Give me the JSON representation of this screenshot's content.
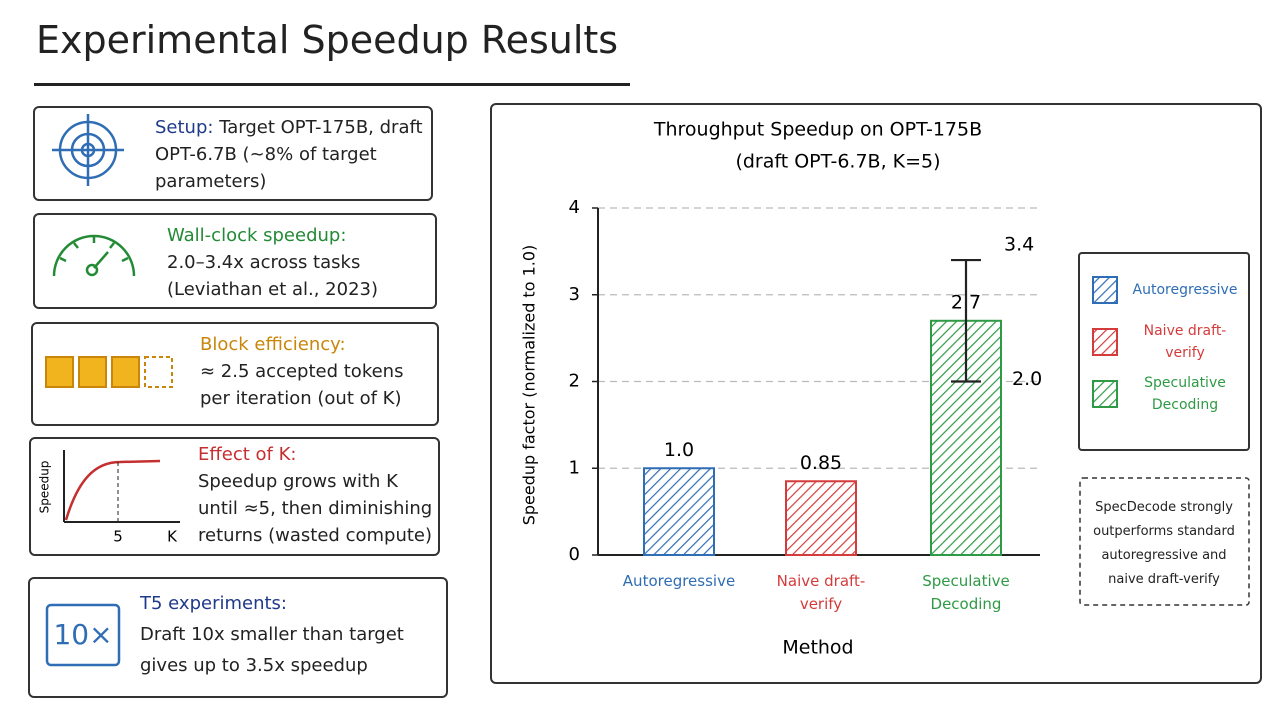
{
  "title": "Experimental Speedup Results",
  "cards": [
    {
      "heading": "Setup:",
      "body": "Target OPT-175B, draft OPT-6.7B (~8% of target parameters)"
    },
    {
      "heading": "Wall-clock speedup:",
      "body": "2.0–3.4x across tasks (Leviathan et al., 2023)"
    },
    {
      "heading": "Block efficiency:",
      "body": "≈ 2.5 accepted tokens per iteration (out of K)"
    },
    {
      "heading": "Effect of K:",
      "body": "Speedup grows with K until ≈5, then diminishing returns (wasted compute)",
      "icon_labels": {
        "y": "Speedup",
        "x_tick": "5",
        "x": "K"
      }
    },
    {
      "heading": "T5 experiments:",
      "body": "Draft 10x smaller than target gives up to 3.5x speedup",
      "icon_text": "10×"
    }
  ],
  "chart_data": {
    "type": "bar",
    "title": "Throughput Speedup on OPT-175B",
    "subtitle": "(draft OPT-6.7B, K=5)",
    "xlabel": "Method",
    "ylabel": "Speedup factor (normalized to 1.0)",
    "categories": [
      "Autoregressive",
      "Naive draft-verify",
      "Speculative Decoding"
    ],
    "values": [
      1,
      0.85,
      2.7
    ],
    "value_labels": [
      "1.0",
      "0.85",
      "2.7"
    ],
    "error_low": [
      null,
      null,
      2
    ],
    "error_low_labels": [
      null,
      null,
      "2.0"
    ],
    "error_high": [
      null,
      null,
      3.4
    ],
    "colors": [
      "#2f6db5",
      "#d43c3c",
      "#2f9a45"
    ],
    "ylim": [
      0,
      4
    ],
    "yticks": [
      0,
      1,
      2,
      3,
      4
    ],
    "grid": true,
    "legend": "right",
    "annotation": "SpecDecode strongly outperforms standard autoregressive and naive draft-verify"
  }
}
